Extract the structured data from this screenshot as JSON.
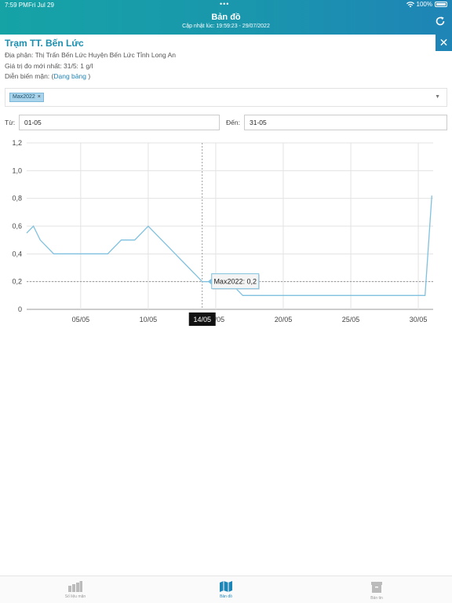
{
  "status_bar": {
    "time": "7:59 PM",
    "date": "Fri Jul 29",
    "battery": "100%"
  },
  "header": {
    "title": "Bản đồ",
    "subtitle": "Cập nhật lúc: 19:59:23 - 29/07/2022"
  },
  "station": {
    "name": "Trạm TT. Bến Lức",
    "location_label": "Địa phận: Thị Trấn Bến Lức Huyện Bến Lức Tỉnh Long An",
    "latest_label": "Giá trị đo mới nhất: 31/5: 1 g/l",
    "salinity_prefix": "Diễn biến mặn: (",
    "salinity_link": "Dạng bảng",
    "salinity_suffix": " )"
  },
  "series_select": {
    "tag": "Max2022",
    "tag_remove": "×"
  },
  "date_range": {
    "from_label": "Từ:",
    "from_value": "01-05",
    "to_label": "Đến:",
    "to_value": "31-05"
  },
  "chart_data": {
    "type": "line",
    "x": [
      1,
      1.5,
      2,
      3,
      4,
      5,
      6,
      7,
      8,
      9,
      10,
      11,
      12,
      13,
      14,
      15,
      16,
      17,
      18,
      19,
      20,
      21,
      22,
      23,
      24,
      25,
      26,
      27,
      28,
      29,
      30,
      30.5,
      31
    ],
    "series": [
      {
        "name": "Max2022",
        "values": [
          0.55,
          0.6,
          0.5,
          0.4,
          0.4,
          0.4,
          0.4,
          0.4,
          0.5,
          0.5,
          0.6,
          0.5,
          0.4,
          0.3,
          0.2,
          0.2,
          0.2,
          0.1,
          0.1,
          0.1,
          0.1,
          0.1,
          0.1,
          0.1,
          0.1,
          0.1,
          0.1,
          0.1,
          0.1,
          0.1,
          0.1,
          0.1,
          0.82
        ]
      }
    ],
    "ylim": [
      0,
      1.2
    ],
    "y_ticks": [
      "0",
      "0,2",
      "0,4",
      "0,6",
      "0,8",
      "1,0",
      "1,2"
    ],
    "x_ticks": [
      {
        "x": 5,
        "label": "05/05"
      },
      {
        "x": 10,
        "label": "10/05"
      },
      {
        "x": 15,
        "label": "15/05"
      },
      {
        "x": 20,
        "label": "20/05"
      },
      {
        "x": 25,
        "label": "25/05"
      },
      {
        "x": 30,
        "label": "30/05"
      }
    ],
    "xlim": [
      1,
      31.1
    ],
    "grid": true,
    "crosshair": {
      "x": 14,
      "y": 0.2,
      "x_label": "14/05",
      "tooltip": "Max2022: 0,2"
    },
    "line_color": "#7fc1df"
  },
  "tabs": [
    {
      "label": "Số liệu mặn",
      "icon": "bar-chart-icon"
    },
    {
      "label": "Bản đồ",
      "icon": "map-icon"
    },
    {
      "label": "Bản tin",
      "icon": "news-box-icon"
    }
  ],
  "colors": {
    "accent": "#1f84b6",
    "header_start": "#15a3a6"
  }
}
